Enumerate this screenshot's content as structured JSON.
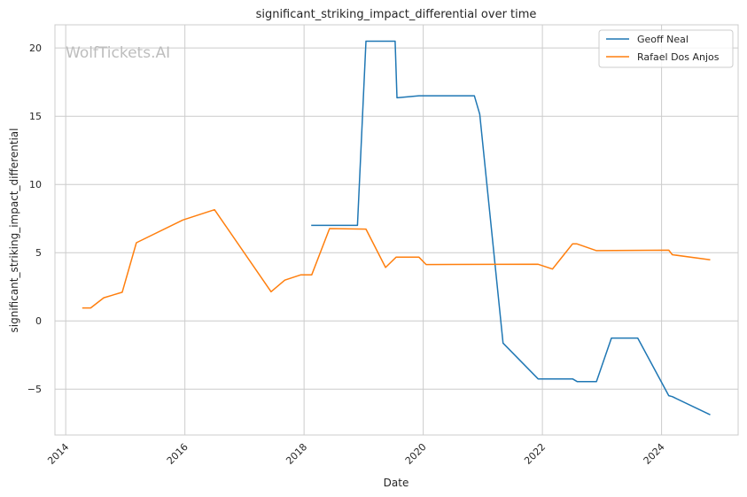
{
  "chart_data": {
    "type": "line",
    "title": "significant_striking_impact_differential over time",
    "xlabel": "Date",
    "ylabel": "significant_striking_impact_differential",
    "watermark": "WolfTickets.AI",
    "xlim": [
      "2013-10-27",
      "2025-04-15"
    ],
    "ylim": [
      -8.36,
      21.7
    ],
    "x_ticks": [
      "2014",
      "2016",
      "2018",
      "2020",
      "2022",
      "2024"
    ],
    "y_ticks": [
      -5,
      0,
      5,
      10,
      15,
      20
    ],
    "y_tick_labels": [
      "−5",
      "0",
      "5",
      "10",
      "15",
      "20"
    ],
    "grid": true,
    "legend_position": "top-right",
    "series": [
      {
        "name": "Geoff Neal",
        "color": "#1f77b4",
        "points": [
          [
            "2018-02-14",
            7.0
          ],
          [
            "2018-11-24",
            7.0
          ],
          [
            "2019-01-15",
            20.5
          ],
          [
            "2019-07-13",
            20.5
          ],
          [
            "2019-07-24",
            16.35
          ],
          [
            "2019-12-06",
            16.5
          ],
          [
            "2020-11-10",
            16.5
          ],
          [
            "2020-12-13",
            15.15
          ],
          [
            "2021-05-05",
            -1.63
          ],
          [
            "2021-12-06",
            -4.25
          ],
          [
            "2022-07-05",
            -4.25
          ],
          [
            "2022-08-03",
            -4.45
          ],
          [
            "2022-11-28",
            -4.45
          ],
          [
            "2023-02-28",
            -1.26
          ],
          [
            "2023-08-08",
            -1.26
          ],
          [
            "2024-02-14",
            -5.48
          ],
          [
            "2024-03-07",
            -5.55
          ],
          [
            "2024-10-26",
            -6.88
          ]
        ]
      },
      {
        "name": "Rafael Dos Anjos",
        "color": "#ff7f0e",
        "points": [
          [
            "2014-04-12",
            0.95
          ],
          [
            "2014-06-03",
            0.95
          ],
          [
            "2014-08-22",
            1.7
          ],
          [
            "2014-12-13",
            2.1
          ],
          [
            "2015-03-10",
            5.73
          ],
          [
            "2015-12-20",
            7.4
          ],
          [
            "2016-07-01",
            8.15
          ],
          [
            "2017-06-13",
            2.14
          ],
          [
            "2017-09-05",
            2.99
          ],
          [
            "2017-12-13",
            3.38
          ],
          [
            "2018-02-17",
            3.38
          ],
          [
            "2018-06-06",
            6.77
          ],
          [
            "2019-01-15",
            6.73
          ],
          [
            "2019-05-15",
            3.92
          ],
          [
            "2019-07-19",
            4.67
          ],
          [
            "2019-12-06",
            4.67
          ],
          [
            "2020-01-19",
            4.13
          ],
          [
            "2021-12-06",
            4.15
          ],
          [
            "2022-03-04",
            3.8
          ],
          [
            "2022-07-05",
            5.65
          ],
          [
            "2022-07-30",
            5.65
          ],
          [
            "2022-11-28",
            5.15
          ],
          [
            "2024-02-14",
            5.18
          ],
          [
            "2024-03-07",
            4.85
          ],
          [
            "2024-10-26",
            4.48
          ]
        ]
      }
    ]
  }
}
